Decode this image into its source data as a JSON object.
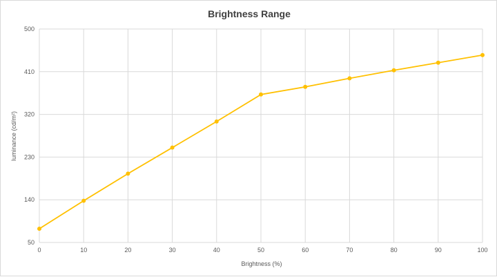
{
  "chart_data": {
    "type": "line",
    "title": "Brightness Range",
    "xlabel": "Brightness (%)",
    "ylabel": "luminance (cd/m²)",
    "x": [
      0,
      10,
      20,
      30,
      40,
      50,
      60,
      70,
      80,
      90,
      100
    ],
    "x_ticks": [
      0,
      10,
      20,
      30,
      40,
      50,
      60,
      70,
      80,
      90,
      100
    ],
    "y_ticks": [
      50,
      140,
      230,
      320,
      410,
      500
    ],
    "xlim": [
      0,
      100
    ],
    "ylim": [
      50,
      500
    ],
    "grid": true,
    "legend": "none",
    "series": [
      {
        "color": "#FFC000",
        "values": [
          79,
          138,
          195,
          250,
          305,
          362,
          378,
          396,
          413,
          429,
          445
        ]
      }
    ]
  }
}
